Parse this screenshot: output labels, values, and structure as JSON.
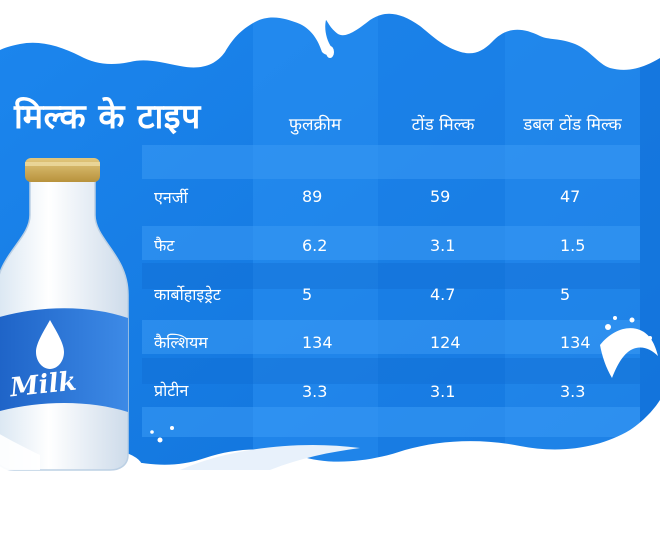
{
  "title": "मिल्क के टाइप",
  "columns": [
    "फुलक्रीम",
    "टोंड मिल्क",
    "डबल टोंड मिल्क"
  ],
  "rows": [
    {
      "label": "एनर्जी",
      "values": [
        "89",
        "59",
        "47"
      ]
    },
    {
      "label": "फैट",
      "values": [
        "6.2",
        "3.1",
        "1.5"
      ]
    },
    {
      "label": "कार्बोहाइड्रेट",
      "values": [
        "5",
        "4.7",
        "5"
      ]
    },
    {
      "label": "कैल्शियम",
      "values": [
        "134",
        "124",
        "134"
      ]
    },
    {
      "label": "प्रोटीन",
      "values": [
        "3.3",
        "3.1",
        "3.3"
      ]
    }
  ],
  "bottle_label": "Milk",
  "colors": {
    "background": "#1a7fe6",
    "stripe": "#2b90f2",
    "milk": "#ffffff"
  }
}
